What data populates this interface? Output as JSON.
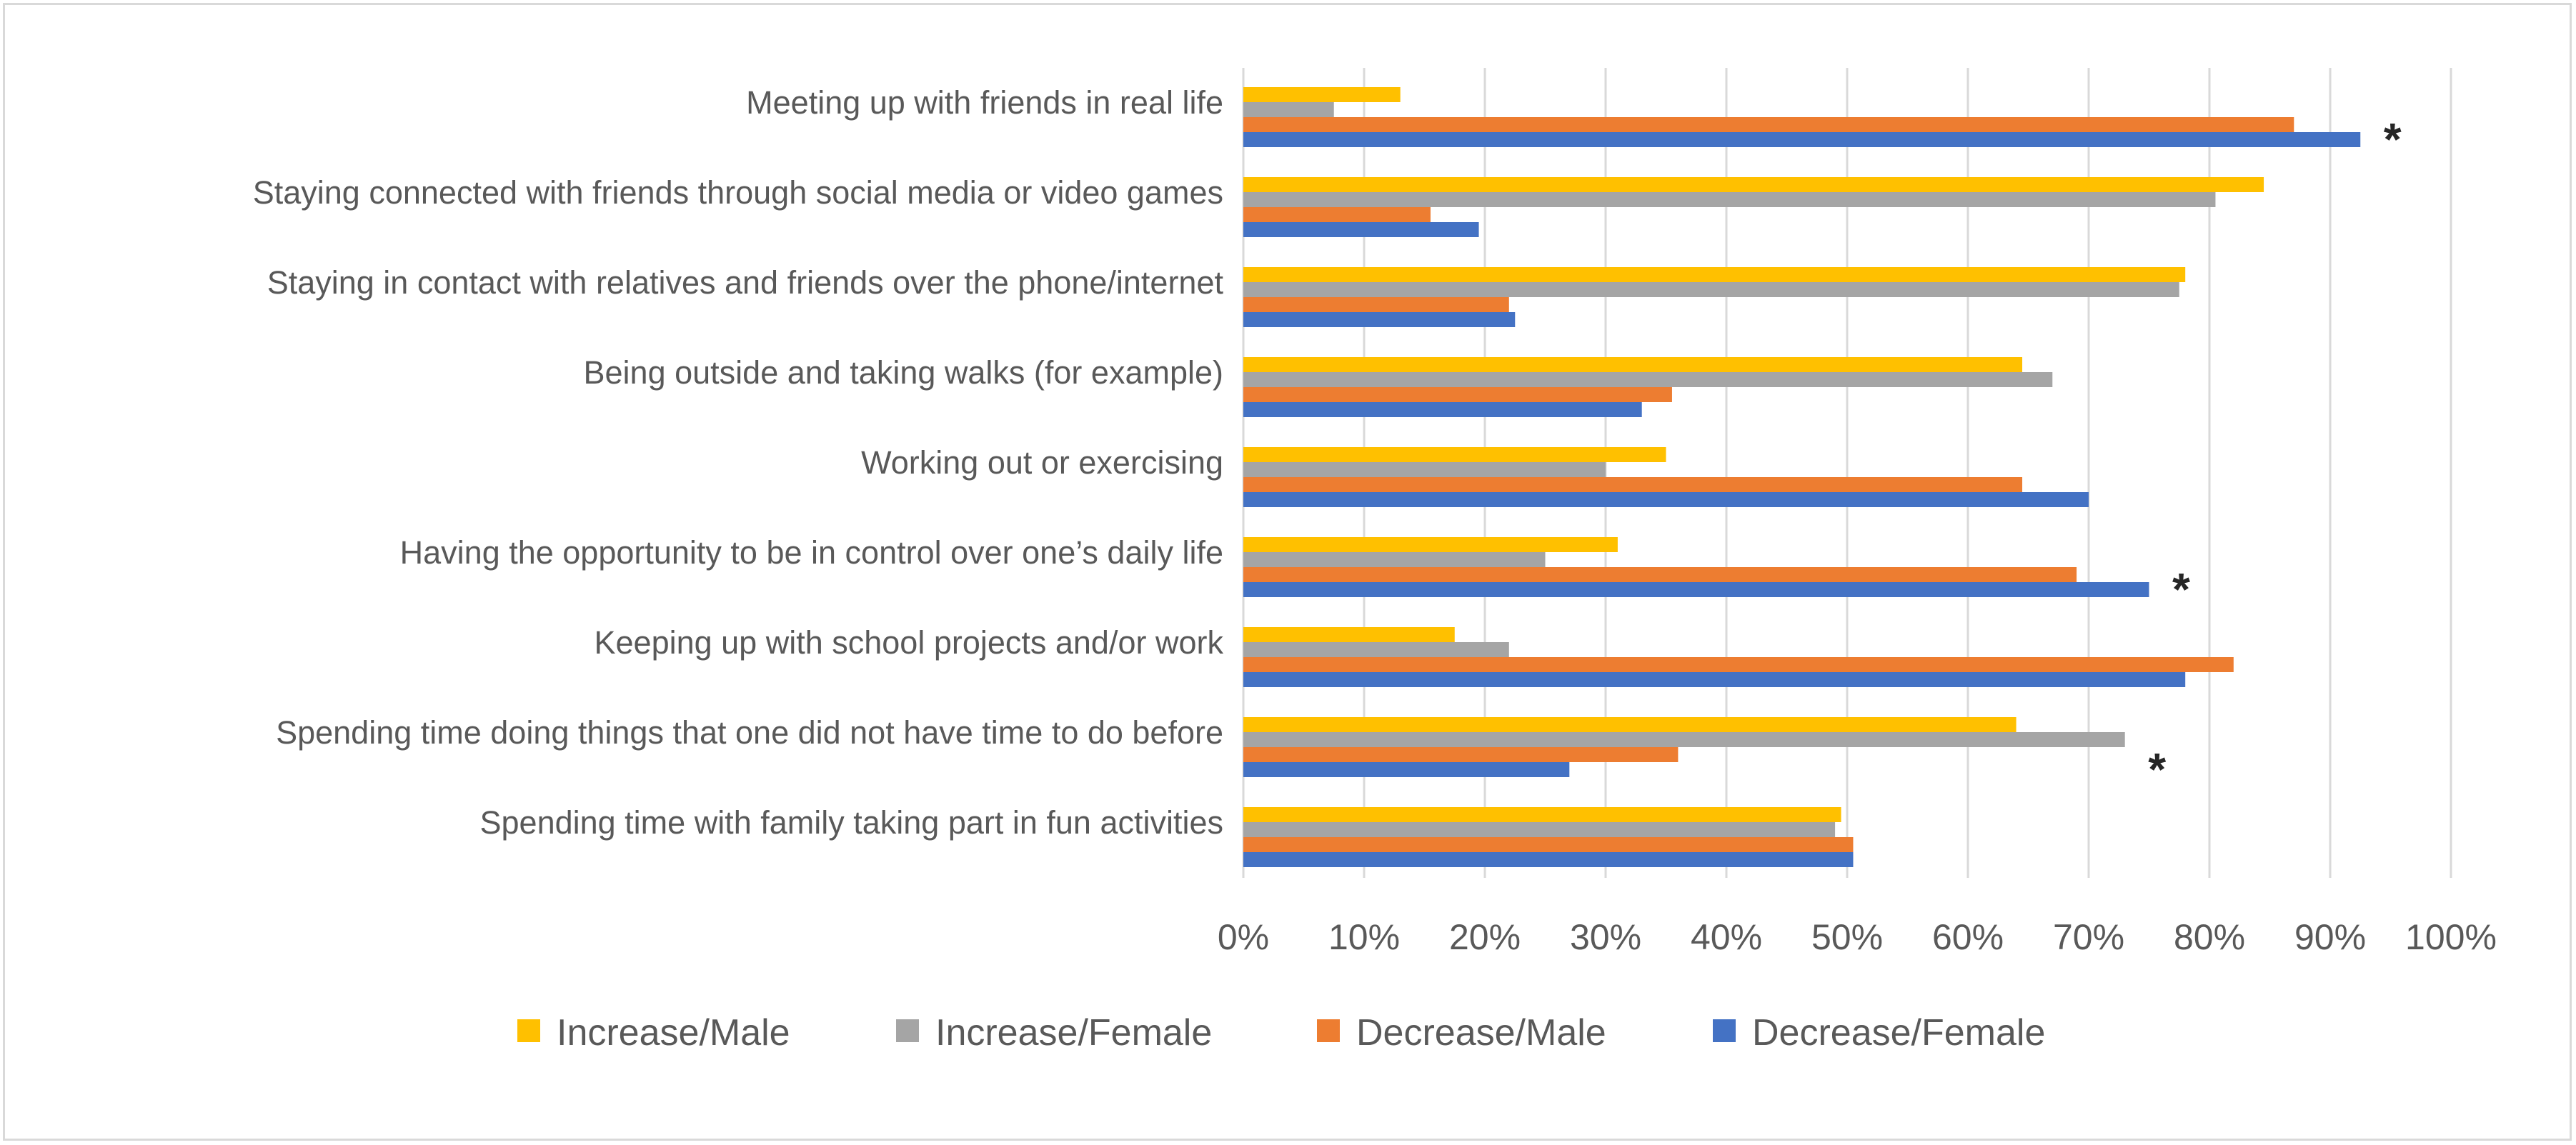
{
  "chart_data": {
    "type": "bar",
    "orientation": "horizontal",
    "title": "",
    "xlabel": "",
    "ylabel": "",
    "xlim": [
      0,
      100
    ],
    "x_ticks": [
      "0%",
      "10%",
      "20%",
      "30%",
      "40%",
      "50%",
      "60%",
      "70%",
      "80%",
      "90%",
      "100%"
    ],
    "grid": true,
    "legend_position": "bottom",
    "categories": [
      "Meeting up with friends in real life",
      "Staying connected with friends through social media or video games",
      "Staying in contact with relatives and friends over the phone/internet",
      "Being outside and taking walks (for example)",
      "Working out or exercising",
      "Having the opportunity to be in control over one’s daily life",
      "Keeping up with school projects and/or work",
      "Spending time doing things that one did not have time to do before",
      "Spending time with family taking part in fun activities"
    ],
    "series": [
      {
        "name": "Increase/Male",
        "color": "#FFC000",
        "values": [
          13,
          84.5,
          78,
          64.5,
          35,
          31,
          17.5,
          64,
          49.5
        ]
      },
      {
        "name": "Increase/Female",
        "color": "#A5A5A5",
        "values": [
          7.5,
          80.5,
          77.5,
          67,
          30,
          25,
          22,
          73,
          49
        ]
      },
      {
        "name": "Decrease/Male",
        "color": "#ED7D31",
        "values": [
          87,
          15.5,
          22,
          35.5,
          64.5,
          69,
          82,
          36,
          50.5
        ]
      },
      {
        "name": "Decrease/Female",
        "color": "#4472C4",
        "values": [
          92.5,
          19.5,
          22.5,
          33,
          70,
          75,
          78,
          27,
          50.5
        ]
      }
    ],
    "annotations": [
      {
        "category_index": 0,
        "text": "*"
      },
      {
        "category_index": 5,
        "text": "*"
      },
      {
        "category_index": 7,
        "text": "*"
      }
    ]
  }
}
